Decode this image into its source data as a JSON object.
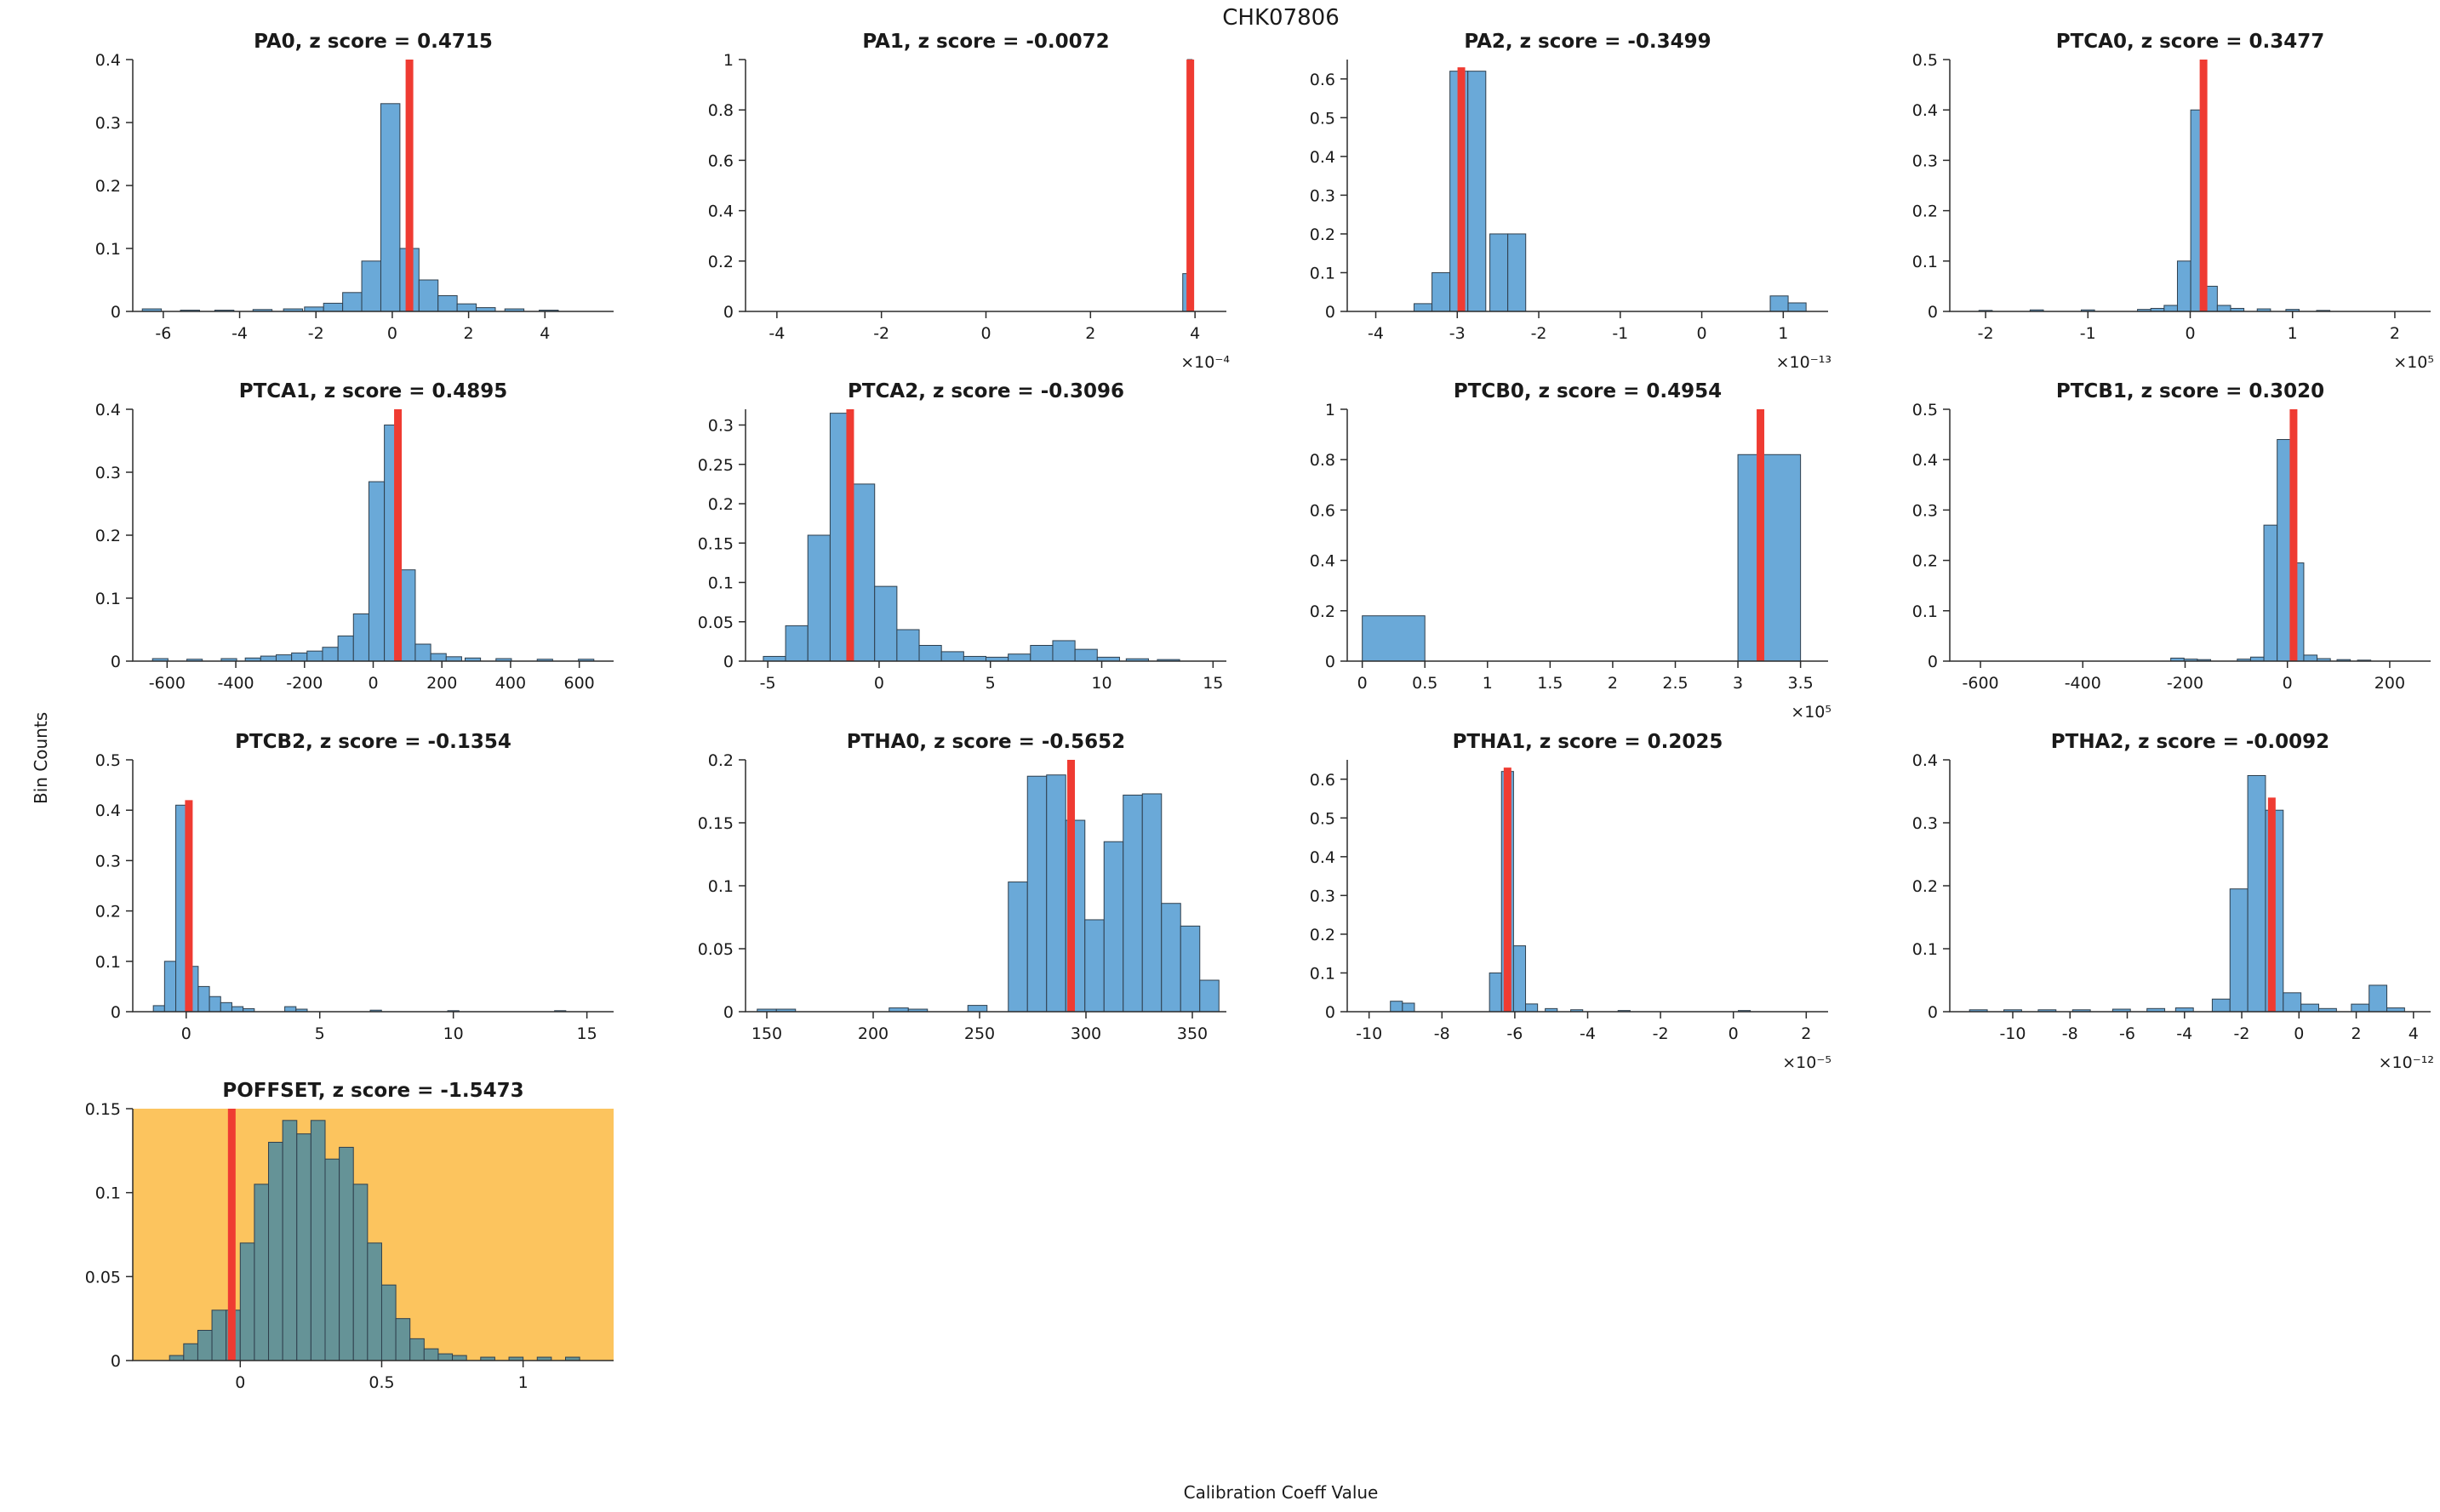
{
  "figure": {
    "title": "CHK07806",
    "xlabel": "Calibration Coeff Value",
    "ylabel": "Bin Counts"
  },
  "style": {
    "bar_fill": "#6aa9d8",
    "bar_edge": "#2f3f4d",
    "highlight_bar_fill": "#659397",
    "highlight_bg": "#fcc45e",
    "red_line": "#ef3b32",
    "axis_color": "#2b2b2b",
    "text_color": "#1a1a1a"
  },
  "chart_data": [
    {
      "name": "PA0",
      "type": "bar",
      "title": "PA0, z score = 0.4715",
      "z_score": 0.4715,
      "xlim": [
        -6.8,
        5.8
      ],
      "ylim": [
        0,
        0.4
      ],
      "xticks": [
        -6,
        -4,
        -2,
        0,
        2,
        4
      ],
      "yticks": [
        0,
        0.1,
        0.2,
        0.3,
        0.4
      ],
      "exponent_label": null,
      "bin_width": 0.5,
      "red_line_x": 0.45,
      "red_line_top": null,
      "highlight": false,
      "bars": [
        [
          -6.3,
          0.004
        ],
        [
          -5.3,
          0.002
        ],
        [
          -4.4,
          0.002
        ],
        [
          -3.4,
          0.003
        ],
        [
          -2.6,
          0.004
        ],
        [
          -2.05,
          0.007
        ],
        [
          -1.55,
          0.013
        ],
        [
          -1.05,
          0.03
        ],
        [
          -0.55,
          0.08
        ],
        [
          -0.05,
          0.33
        ],
        [
          0.45,
          0.1
        ],
        [
          0.95,
          0.05
        ],
        [
          1.45,
          0.025
        ],
        [
          1.95,
          0.012
        ],
        [
          2.45,
          0.006
        ],
        [
          3.2,
          0.004
        ],
        [
          4.1,
          0.002
        ]
      ]
    },
    {
      "name": "PA1",
      "type": "bar",
      "title": "PA1, z score = -0.0072",
      "z_score": -0.0072,
      "xlim": [
        -4.6,
        4.6
      ],
      "ylim": [
        0,
        1
      ],
      "xticks": [
        -4,
        -2,
        0,
        2,
        4
      ],
      "yticks": [
        0,
        0.2,
        0.4,
        0.6,
        0.8,
        1
      ],
      "exponent_label": "×10⁻⁴",
      "bin_width": 0.09,
      "red_line_x": 3.91,
      "red_line_top": null,
      "highlight": false,
      "bars": [
        [
          3.81,
          0.15
        ],
        [
          3.9,
          1.0
        ]
      ]
    },
    {
      "name": "PA2",
      "type": "bar",
      "title": "PA2, z score = -0.3499",
      "z_score": -0.3499,
      "xlim": [
        -4.35,
        1.55
      ],
      "ylim": [
        0,
        0.65
      ],
      "xticks": [
        -4,
        -3,
        -2,
        -1,
        0,
        1
      ],
      "yticks": [
        0,
        0.1,
        0.2,
        0.3,
        0.4,
        0.5,
        0.6
      ],
      "exponent_label": "×10⁻¹³",
      "bin_width": 0.22,
      "red_line_x": -2.95,
      "red_line_top": 0.63,
      "highlight": false,
      "bars": [
        [
          -3.42,
          0.02
        ],
        [
          -3.2,
          0.1
        ],
        [
          -2.98,
          0.62
        ],
        [
          -2.76,
          0.62
        ],
        [
          -2.49,
          0.2
        ],
        [
          -2.27,
          0.2
        ],
        [
          0.95,
          0.04
        ],
        [
          1.17,
          0.022
        ]
      ]
    },
    {
      "name": "PTCA0",
      "type": "bar",
      "title": "PTCA0, z score = 0.3477",
      "z_score": 0.3477,
      "xlim": [
        -2.35,
        2.35
      ],
      "ylim": [
        0,
        0.5
      ],
      "xticks": [
        -2,
        -1,
        0,
        1,
        2
      ],
      "yticks": [
        0,
        0.1,
        0.2,
        0.3,
        0.4,
        0.5
      ],
      "exponent_label": "×10⁵",
      "bin_width": 0.13,
      "red_line_x": 0.13,
      "red_line_top": null,
      "highlight": false,
      "bars": [
        [
          -2.0,
          0.002
        ],
        [
          -1.5,
          0.003
        ],
        [
          -1.0,
          0.003
        ],
        [
          -0.45,
          0.004
        ],
        [
          -0.32,
          0.006
        ],
        [
          -0.19,
          0.012
        ],
        [
          -0.06,
          0.1
        ],
        [
          0.07,
          0.4
        ],
        [
          0.2,
          0.05
        ],
        [
          0.33,
          0.012
        ],
        [
          0.46,
          0.006
        ],
        [
          0.72,
          0.005
        ],
        [
          1.0,
          0.004
        ],
        [
          1.3,
          0.002
        ]
      ]
    },
    {
      "name": "PTCA1",
      "type": "bar",
      "title": "PTCA1, z score = 0.4895",
      "z_score": 0.4895,
      "xlim": [
        -700,
        700
      ],
      "ylim": [
        0,
        0.4
      ],
      "xticks": [
        -600,
        -400,
        -200,
        0,
        200,
        400,
        600
      ],
      "yticks": [
        0,
        0.1,
        0.2,
        0.3,
        0.4
      ],
      "exponent_label": null,
      "bin_width": 45,
      "red_line_x": 72,
      "red_line_top": null,
      "highlight": false,
      "bars": [
        [
          -620,
          0.004
        ],
        [
          -520,
          0.003
        ],
        [
          -420,
          0.004
        ],
        [
          -350,
          0.005
        ],
        [
          -305,
          0.008
        ],
        [
          -260,
          0.01
        ],
        [
          -215,
          0.013
        ],
        [
          -170,
          0.016
        ],
        [
          -125,
          0.022
        ],
        [
          -80,
          0.04
        ],
        [
          -35,
          0.075
        ],
        [
          10,
          0.285
        ],
        [
          55,
          0.375
        ],
        [
          100,
          0.145
        ],
        [
          145,
          0.027
        ],
        [
          190,
          0.012
        ],
        [
          235,
          0.007
        ],
        [
          290,
          0.005
        ],
        [
          380,
          0.004
        ],
        [
          500,
          0.003
        ],
        [
          620,
          0.003
        ]
      ]
    },
    {
      "name": "PTCA2",
      "type": "bar",
      "title": "PTCA2, z score = -0.3096",
      "z_score": -0.3096,
      "xlim": [
        -6,
        15.6
      ],
      "ylim": [
        0,
        0.32
      ],
      "xticks": [
        -5,
        0,
        5,
        10,
        15
      ],
      "yticks": [
        0,
        0.05,
        0.1,
        0.15,
        0.2,
        0.25,
        0.3
      ],
      "exponent_label": null,
      "bin_width": 1,
      "red_line_x": -1.3,
      "red_line_top": null,
      "highlight": false,
      "bars": [
        [
          -4.7,
          0.006
        ],
        [
          -3.7,
          0.045
        ],
        [
          -2.7,
          0.16
        ],
        [
          -1.7,
          0.315
        ],
        [
          -0.7,
          0.225
        ],
        [
          0.3,
          0.095
        ],
        [
          1.3,
          0.04
        ],
        [
          2.3,
          0.02
        ],
        [
          3.3,
          0.012
        ],
        [
          4.3,
          0.006
        ],
        [
          5.3,
          0.005
        ],
        [
          6.3,
          0.009
        ],
        [
          7.3,
          0.02
        ],
        [
          8.3,
          0.026
        ],
        [
          9.3,
          0.015
        ],
        [
          10.3,
          0.005
        ],
        [
          11.6,
          0.003
        ],
        [
          13,
          0.002
        ]
      ]
    },
    {
      "name": "PTCB0",
      "type": "bar",
      "title": "PTCB0, z score = 0.4954",
      "z_score": 0.4954,
      "xlim": [
        -0.12,
        3.72
      ],
      "ylim": [
        0,
        1
      ],
      "xticks": [
        0,
        0.5,
        1,
        1.5,
        2,
        2.5,
        3,
        3.5
      ],
      "yticks": [
        0,
        0.2,
        0.4,
        0.6,
        0.8,
        1
      ],
      "exponent_label": "×10⁵",
      "bin_width": 0.5,
      "red_line_x": 3.18,
      "red_line_top": null,
      "highlight": false,
      "bars": [
        [
          0.25,
          0.18
        ],
        [
          3.25,
          0.82
        ]
      ]
    },
    {
      "name": "PTCB1",
      "type": "bar",
      "title": "PTCB1, z score = 0.3020",
      "z_score": 0.302,
      "xlim": [
        -660,
        280
      ],
      "ylim": [
        0,
        0.5
      ],
      "xticks": [
        -600,
        -400,
        -200,
        0,
        200
      ],
      "yticks": [
        0,
        0.1,
        0.2,
        0.3,
        0.4,
        0.5
      ],
      "exponent_label": null,
      "bin_width": 26,
      "red_line_x": 12,
      "red_line_top": null,
      "highlight": false,
      "bars": [
        [
          -215,
          0.006
        ],
        [
          -189,
          0.004
        ],
        [
          -163,
          0.003
        ],
        [
          -85,
          0.004
        ],
        [
          -59,
          0.008
        ],
        [
          -33,
          0.27
        ],
        [
          -7,
          0.44
        ],
        [
          19,
          0.195
        ],
        [
          45,
          0.012
        ],
        [
          71,
          0.005
        ],
        [
          110,
          0.003
        ],
        [
          150,
          0.002
        ]
      ]
    },
    {
      "name": "PTCB2",
      "type": "bar",
      "title": "PTCB2, z score = -0.1354",
      "z_score": -0.1354,
      "xlim": [
        -2,
        16
      ],
      "ylim": [
        0,
        0.5
      ],
      "xticks": [
        0,
        5,
        10,
        15
      ],
      "yticks": [
        0,
        0.1,
        0.2,
        0.3,
        0.4,
        0.5
      ],
      "exponent_label": null,
      "bin_width": 0.42,
      "red_line_x": 0.1,
      "red_line_top": 0.42,
      "highlight": false,
      "bars": [
        [
          -1.02,
          0.012
        ],
        [
          -0.6,
          0.1
        ],
        [
          -0.18,
          0.41
        ],
        [
          0.24,
          0.09
        ],
        [
          0.66,
          0.05
        ],
        [
          1.08,
          0.03
        ],
        [
          1.5,
          0.018
        ],
        [
          1.92,
          0.01
        ],
        [
          2.34,
          0.006
        ],
        [
          3.9,
          0.01
        ],
        [
          4.32,
          0.005
        ],
        [
          7.1,
          0.003
        ],
        [
          10,
          0.002
        ],
        [
          14,
          0.002
        ]
      ]
    },
    {
      "name": "PTHA0",
      "type": "bar",
      "title": "PTHA0, z score = -0.5652",
      "z_score": -0.5652,
      "xlim": [
        140,
        366
      ],
      "ylim": [
        0,
        0.2
      ],
      "xticks": [
        150,
        200,
        250,
        300,
        350
      ],
      "yticks": [
        0,
        0.05,
        0.1,
        0.15,
        0.2
      ],
      "exponent_label": null,
      "bin_width": 9,
      "red_line_x": 293,
      "red_line_top": null,
      "highlight": false,
      "bars": [
        [
          150,
          0.002
        ],
        [
          159,
          0.002
        ],
        [
          212,
          0.003
        ],
        [
          221,
          0.002
        ],
        [
          249,
          0.005
        ],
        [
          268,
          0.103
        ],
        [
          277,
          0.187
        ],
        [
          286,
          0.188
        ],
        [
          295,
          0.152
        ],
        [
          304,
          0.073
        ],
        [
          313,
          0.135
        ],
        [
          322,
          0.172
        ],
        [
          331,
          0.173
        ],
        [
          340,
          0.086
        ],
        [
          349,
          0.068
        ],
        [
          358,
          0.025
        ]
      ]
    },
    {
      "name": "PTHA1",
      "type": "bar",
      "title": "PTHA1, z score = 0.2025",
      "z_score": 0.2025,
      "xlim": [
        -10.6,
        2.6
      ],
      "ylim": [
        0,
        0.65
      ],
      "xticks": [
        -10,
        -8,
        -6,
        -4,
        -2,
        0,
        2
      ],
      "yticks": [
        0,
        0.1,
        0.2,
        0.3,
        0.4,
        0.5,
        0.6
      ],
      "exponent_label": "×10⁻⁵",
      "bin_width": 0.33,
      "red_line_x": -6.2,
      "red_line_top": 0.63,
      "highlight": false,
      "bars": [
        [
          -9.25,
          0.027
        ],
        [
          -8.92,
          0.022
        ],
        [
          -6.53,
          0.1
        ],
        [
          -6.2,
          0.62
        ],
        [
          -5.87,
          0.17
        ],
        [
          -5.54,
          0.02
        ],
        [
          -5.0,
          0.008
        ],
        [
          -4.3,
          0.005
        ],
        [
          -3.0,
          0.003
        ],
        [
          0.3,
          0.003
        ]
      ]
    },
    {
      "name": "PTHA2",
      "type": "bar",
      "title": "PTHA2, z score = -0.0092",
      "z_score": -0.0092,
      "xlim": [
        -12.2,
        4.6
      ],
      "ylim": [
        0,
        0.4
      ],
      "xticks": [
        -10,
        -8,
        -6,
        -4,
        -2,
        0,
        2,
        4
      ],
      "yticks": [
        0,
        0.1,
        0.2,
        0.3,
        0.4
      ],
      "exponent_label": "×10⁻¹²",
      "bin_width": 0.62,
      "red_line_x": -0.95,
      "red_line_top": 0.34,
      "highlight": false,
      "bars": [
        [
          -11.2,
          0.003
        ],
        [
          -10,
          0.003
        ],
        [
          -8.8,
          0.003
        ],
        [
          -7.6,
          0.003
        ],
        [
          -6.2,
          0.004
        ],
        [
          -5,
          0.005
        ],
        [
          -4,
          0.006
        ],
        [
          -2.72,
          0.02
        ],
        [
          -2.1,
          0.195
        ],
        [
          -1.48,
          0.375
        ],
        [
          -0.86,
          0.32
        ],
        [
          -0.24,
          0.03
        ],
        [
          0.38,
          0.012
        ],
        [
          1,
          0.005
        ],
        [
          2.14,
          0.012
        ],
        [
          2.76,
          0.042
        ],
        [
          3.38,
          0.006
        ]
      ]
    },
    {
      "name": "POFFSET",
      "type": "bar",
      "title": "POFFSET, z score = -1.5473",
      "z_score": -1.5473,
      "xlim": [
        -0.38,
        1.32
      ],
      "ylim": [
        0,
        0.15
      ],
      "xticks": [
        0,
        0.5,
        1
      ],
      "yticks": [
        0,
        0.05,
        0.1,
        0.15
      ],
      "exponent_label": null,
      "bin_width": 0.05,
      "red_line_x": -0.03,
      "red_line_top": null,
      "highlight": true,
      "bars": [
        [
          -0.225,
          0.003
        ],
        [
          -0.175,
          0.01
        ],
        [
          -0.125,
          0.018
        ],
        [
          -0.075,
          0.03
        ],
        [
          -0.025,
          0.03
        ],
        [
          0.025,
          0.07
        ],
        [
          0.075,
          0.105
        ],
        [
          0.125,
          0.13
        ],
        [
          0.175,
          0.143
        ],
        [
          0.225,
          0.135
        ],
        [
          0.275,
          0.143
        ],
        [
          0.325,
          0.12
        ],
        [
          0.375,
          0.127
        ],
        [
          0.425,
          0.105
        ],
        [
          0.475,
          0.07
        ],
        [
          0.525,
          0.045
        ],
        [
          0.575,
          0.025
        ],
        [
          0.625,
          0.013
        ],
        [
          0.675,
          0.007
        ],
        [
          0.725,
          0.004
        ],
        [
          0.775,
          0.003
        ],
        [
          0.875,
          0.002
        ],
        [
          0.975,
          0.002
        ],
        [
          1.075,
          0.002
        ],
        [
          1.175,
          0.002
        ]
      ]
    }
  ]
}
